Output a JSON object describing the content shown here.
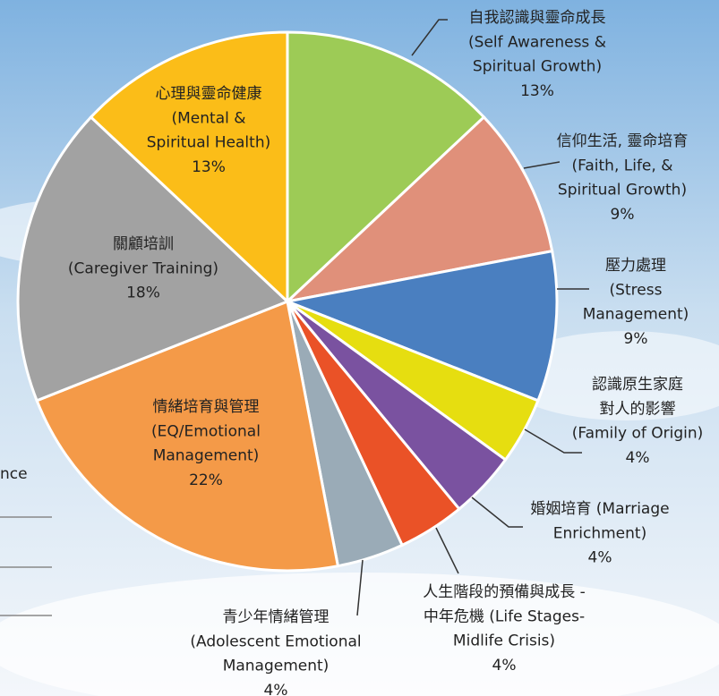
{
  "chart_data": {
    "type": "pie",
    "annotations": [
      "nce"
    ],
    "categories": [
      [
        "自我認識與靈命成長",
        "(Self Awareness &",
        "Spiritual Growth)"
      ],
      [
        "信仰生活, 靈命培育",
        "(Faith, Life, &",
        "Spiritual Growth)"
      ],
      [
        "壓力處理",
        "(Stress",
        "Management)"
      ],
      [
        "認識原生家庭",
        "對人的影響",
        "(Family of Origin)"
      ],
      [
        "婚姻培育 (Marriage",
        "Enrichment)"
      ],
      [
        "人生階段的預備與成長 -",
        "中年危機 (Life Stages-",
        "Midlife Crisis)"
      ],
      [
        "青少年情緒管理",
        "(Adolescent Emotional",
        "Management)"
      ],
      [
        "情緒培育與管理",
        "(EQ/Emotional",
        "Management)"
      ],
      [
        "關顧培訓",
        "(Caregiver Training)"
      ],
      [
        "心理與靈命健康",
        "(Mental &",
        "Spiritual Health)"
      ]
    ],
    "values": [
      13,
      9,
      9,
      4,
      4,
      4,
      4,
      22,
      18,
      13
    ],
    "value_labels": [
      "13%",
      "9%",
      "9%",
      "4%",
      "4%",
      "4%",
      "4%",
      "22%",
      "18%",
      "13%"
    ],
    "colors": [
      "#9dcb56",
      "#e0907a",
      "#4a7fc0",
      "#e6de10",
      "#7a52a0",
      "#ea5227",
      "#9aabb7",
      "#f49a48",
      "#a2a2a2",
      "#fbbd18"
    ]
  }
}
